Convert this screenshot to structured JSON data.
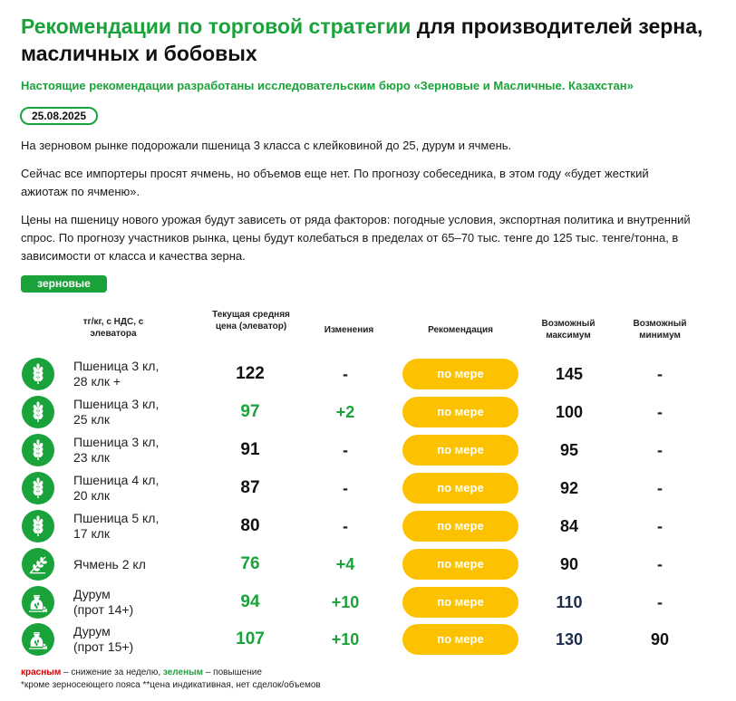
{
  "title": {
    "green_part": "Рекомендации по торговой стратегии",
    "black_part": " для производителей зерна, масличных и бобовых"
  },
  "subtitle": "Настоящие рекомендации разработаны исследовательским бюро «Зерновые и Масличные. Казахстан»",
  "date": "25.08.2025",
  "paragraphs": [
    "На зерновом рынке подорожали пшеница 3 класса с клейковиной до 25, дурум и ячмень.",
    "Сейчас все импортеры просят ячмень, но объемов еще нет. По прогнозу собеседника, в этом году «будет жесткий ажиотаж по ячменю».",
    "Цены на пшеницу нового урожая будут зависеть от ряда факторов: погодные условия, экспортная политика и внутренний спрос. По прогнозу участников рынка, цены будут колебаться в пределах от 65–70 тыс. тенге до 125 тыс. тенге/тонна, в зависимости от класса и качества зерна."
  ],
  "section_tag": "зерновые",
  "table": {
    "headers": {
      "unit": "тг/кг, с НДС, с элеватора",
      "price": "Текущая средняя цена (элеватор)",
      "change": "Изменения",
      "recommendation": "Рекомендация",
      "max": "Возможный максимум",
      "min": "Возможный минимум"
    },
    "rows": [
      {
        "icon": "wheat-icon",
        "name_line1": "Пшеница 3 кл,",
        "name_line2": "28 клк +",
        "price": "122",
        "change": "-",
        "recommendation": "по мере",
        "max": "145",
        "min": "-"
      },
      {
        "icon": "wheat-icon",
        "name_line1": "Пшеница 3 кл,",
        "name_line2": "25 клк",
        "price": "97",
        "change": "+2",
        "recommendation": "по мере",
        "max": "100",
        "min": "-"
      },
      {
        "icon": "wheat-icon",
        "name_line1": "Пшеница 3 кл,",
        "name_line2": "23 клк",
        "price": "91",
        "change": "-",
        "recommendation": "по мере",
        "max": "95",
        "min": "-"
      },
      {
        "icon": "wheat-icon",
        "name_line1": "Пшеница 4 кл,",
        "name_line2": "20 клк",
        "price": "87",
        "change": "-",
        "recommendation": "по мере",
        "max": "92",
        "min": "-"
      },
      {
        "icon": "wheat-icon",
        "name_line1": "Пшеница 5 кл,",
        "name_line2": "17 клк",
        "price": "80",
        "change": "-",
        "recommendation": "по мере",
        "max": "84",
        "min": "-"
      },
      {
        "icon": "barley-icon",
        "name_line1": "Ячмень 2 кл",
        "name_line2": "",
        "price": "76",
        "change": "+4",
        "recommendation": "по мере",
        "max": "90",
        "min": "-"
      },
      {
        "icon": "grain-sack-icon",
        "name_line1": "Дурум",
        "name_line2": "(прот 14+)",
        "price": "94",
        "change": "+10",
        "recommendation": "по мере",
        "max": "110",
        "min": "-"
      },
      {
        "icon": "grain-sack-icon",
        "name_line1": "Дурум",
        "name_line2": "(прот 15+)",
        "price": "107",
        "change": "+10",
        "recommendation": "по мере",
        "max": "130",
        "min": "90"
      }
    ]
  },
  "legend": {
    "red_word": "красным",
    "red_text": " – снижение за неделю, ",
    "green_word": "зеленым",
    "green_text": " – повышение"
  },
  "footnote": "*кроме зерносеющего пояса **цена индикативная, нет сделок/объемов",
  "colors": {
    "brand_green": "#1aa33a",
    "recommendation_yellow": "#fcc200",
    "increase": "#1aa33a",
    "decrease": "#d40000"
  }
}
